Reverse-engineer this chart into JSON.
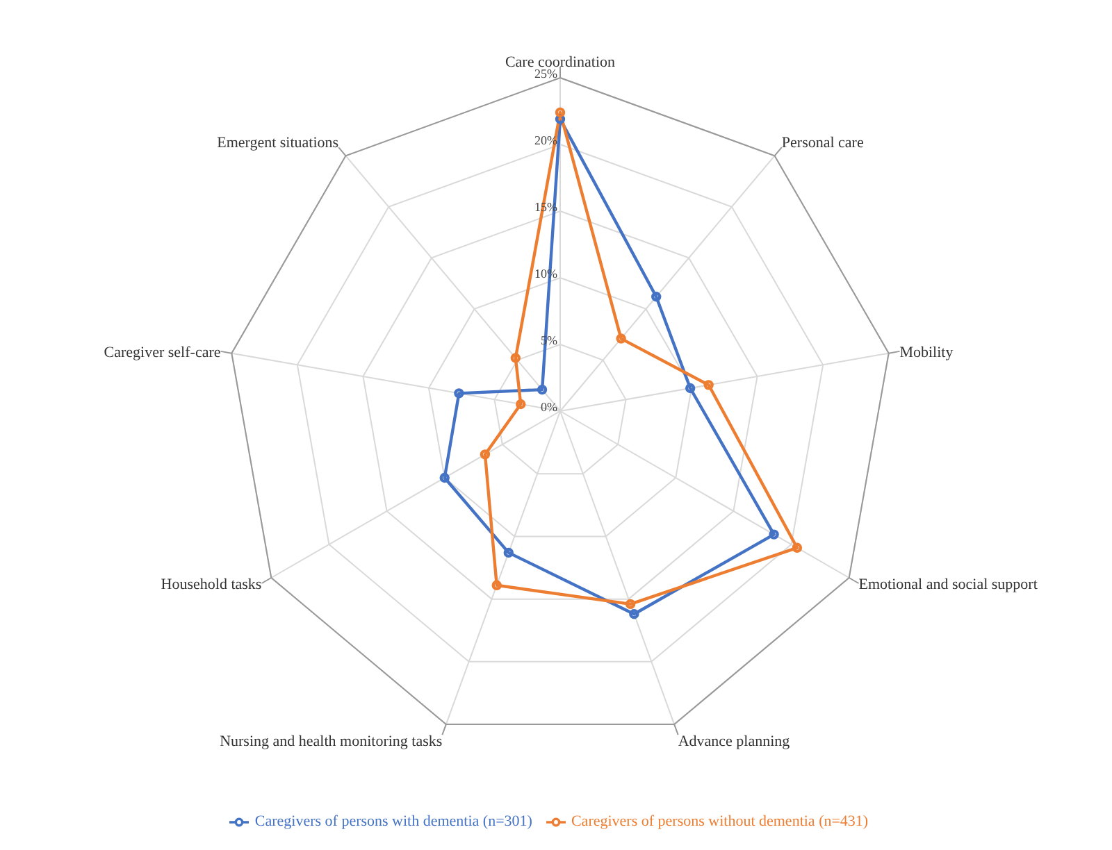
{
  "chart_data": {
    "type": "radar",
    "categories": [
      "Care coordination",
      "Personal care",
      "Mobility",
      "Emotional and social support",
      "Advance planning",
      "Nursing and health monitoring tasks",
      "Household tasks",
      "Caregiver self-care",
      "Emergent situations"
    ],
    "series": [
      {
        "name": "Caregivers of persons with dementia (n=301)",
        "color": "#4472c4",
        "values": [
          21.9,
          11.2,
          9.9,
          18.5,
          16.2,
          11.3,
          10.0,
          7.7,
          2.1
        ]
      },
      {
        "name": "Caregivers of persons without dementia (n=431)",
        "color": "#ed7d31",
        "values": [
          22.4,
          7.1,
          11.3,
          20.5,
          15.4,
          13.9,
          6.5,
          3.0,
          5.2
        ]
      }
    ],
    "ylim": [
      0,
      25
    ],
    "yticks": [
      {
        "value": 0,
        "label": "0%"
      },
      {
        "value": 5,
        "label": "5%"
      },
      {
        "value": 10,
        "label": "10%"
      },
      {
        "value": 15,
        "label": "15%"
      },
      {
        "value": 20,
        "label": "20%"
      },
      {
        "value": 25,
        "label": "25%"
      }
    ],
    "grid": true,
    "legend": "bottom",
    "marker": "circle",
    "line_style": "solid"
  }
}
